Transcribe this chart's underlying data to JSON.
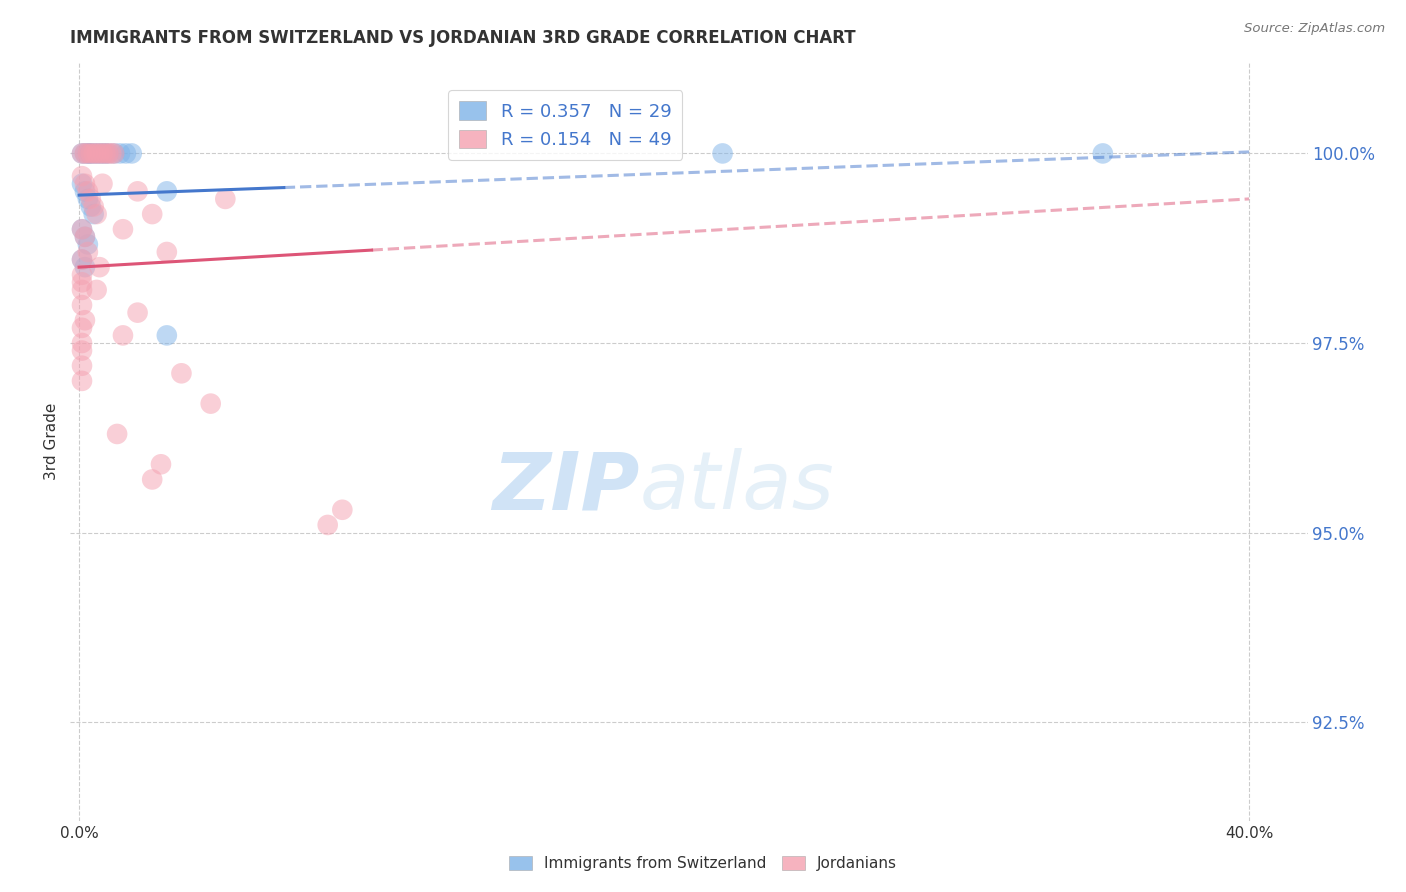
{
  "title": "IMMIGRANTS FROM SWITZERLAND VS JORDANIAN 3RD GRADE CORRELATION CHART",
  "source": "Source: ZipAtlas.com",
  "ylabel": "3rd Grade",
  "ylabel_ticks": [
    "92.5%",
    "95.0%",
    "97.5%",
    "100.0%"
  ],
  "ylabel_vals": [
    92.5,
    95.0,
    97.5,
    100.0
  ],
  "ylim": [
    91.2,
    101.2
  ],
  "xlim": [
    -0.003,
    0.42
  ],
  "xticks": [
    0.0,
    0.4
  ],
  "xtick_labels": [
    "0.0%",
    "40.0%"
  ],
  "legend_blue_R": "R = 0.357",
  "legend_blue_N": "N = 29",
  "legend_pink_R": "R = 0.154",
  "legend_pink_N": "N = 49",
  "blue_scatter": [
    [
      0.001,
      100.0
    ],
    [
      0.002,
      100.0
    ],
    [
      0.003,
      100.0
    ],
    [
      0.0035,
      100.0
    ],
    [
      0.004,
      100.0
    ],
    [
      0.005,
      100.0
    ],
    [
      0.006,
      100.0
    ],
    [
      0.007,
      100.0
    ],
    [
      0.008,
      100.0
    ],
    [
      0.009,
      100.0
    ],
    [
      0.01,
      100.0
    ],
    [
      0.012,
      100.0
    ],
    [
      0.014,
      100.0
    ],
    [
      0.016,
      100.0
    ],
    [
      0.018,
      100.0
    ],
    [
      0.001,
      99.6
    ],
    [
      0.002,
      99.5
    ],
    [
      0.003,
      99.4
    ],
    [
      0.004,
      99.3
    ],
    [
      0.005,
      99.2
    ],
    [
      0.001,
      99.0
    ],
    [
      0.002,
      98.9
    ],
    [
      0.003,
      98.8
    ],
    [
      0.001,
      98.6
    ],
    [
      0.002,
      98.5
    ],
    [
      0.03,
      99.5
    ],
    [
      0.03,
      97.6
    ],
    [
      0.22,
      100.0
    ],
    [
      0.35,
      100.0
    ]
  ],
  "pink_scatter": [
    [
      0.001,
      100.0
    ],
    [
      0.002,
      100.0
    ],
    [
      0.003,
      100.0
    ],
    [
      0.004,
      100.0
    ],
    [
      0.005,
      100.0
    ],
    [
      0.006,
      100.0
    ],
    [
      0.007,
      100.0
    ],
    [
      0.008,
      100.0
    ],
    [
      0.009,
      100.0
    ],
    [
      0.01,
      100.0
    ],
    [
      0.011,
      100.0
    ],
    [
      0.012,
      100.0
    ],
    [
      0.001,
      99.7
    ],
    [
      0.002,
      99.6
    ],
    [
      0.003,
      99.5
    ],
    [
      0.004,
      99.4
    ],
    [
      0.005,
      99.3
    ],
    [
      0.006,
      99.2
    ],
    [
      0.001,
      99.0
    ],
    [
      0.002,
      98.9
    ],
    [
      0.003,
      98.7
    ],
    [
      0.001,
      98.6
    ],
    [
      0.001,
      98.4
    ],
    [
      0.001,
      98.3
    ],
    [
      0.001,
      98.2
    ],
    [
      0.001,
      98.0
    ],
    [
      0.002,
      97.8
    ],
    [
      0.001,
      97.7
    ],
    [
      0.001,
      97.5
    ],
    [
      0.001,
      97.4
    ],
    [
      0.02,
      99.5
    ],
    [
      0.025,
      99.2
    ],
    [
      0.015,
      99.0
    ],
    [
      0.03,
      98.7
    ],
    [
      0.007,
      98.5
    ],
    [
      0.02,
      97.9
    ],
    [
      0.015,
      97.6
    ],
    [
      0.008,
      99.6
    ],
    [
      0.05,
      99.4
    ],
    [
      0.001,
      97.2
    ],
    [
      0.001,
      97.0
    ],
    [
      0.006,
      98.2
    ],
    [
      0.035,
      97.1
    ],
    [
      0.045,
      96.7
    ],
    [
      0.085,
      95.1
    ],
    [
      0.09,
      95.3
    ],
    [
      0.028,
      95.9
    ],
    [
      0.025,
      95.7
    ],
    [
      0.013,
      96.3
    ]
  ],
  "blue_line_x": [
    0.0,
    0.4
  ],
  "blue_line_y": [
    99.45,
    100.02
  ],
  "pink_line_x": [
    0.0,
    0.4
  ],
  "pink_line_y": [
    98.5,
    99.4
  ],
  "blue_color": "#7fb3e8",
  "pink_color": "#f4a0b0",
  "blue_line_color": "#4477cc",
  "pink_line_color": "#dd5577",
  "watermark_zip": "ZIP",
  "watermark_atlas": "atlas",
  "background_color": "#ffffff",
  "grid_color": "#cccccc",
  "right_label_color": "#4477cc",
  "source_color": "#777777",
  "title_color": "#333333"
}
